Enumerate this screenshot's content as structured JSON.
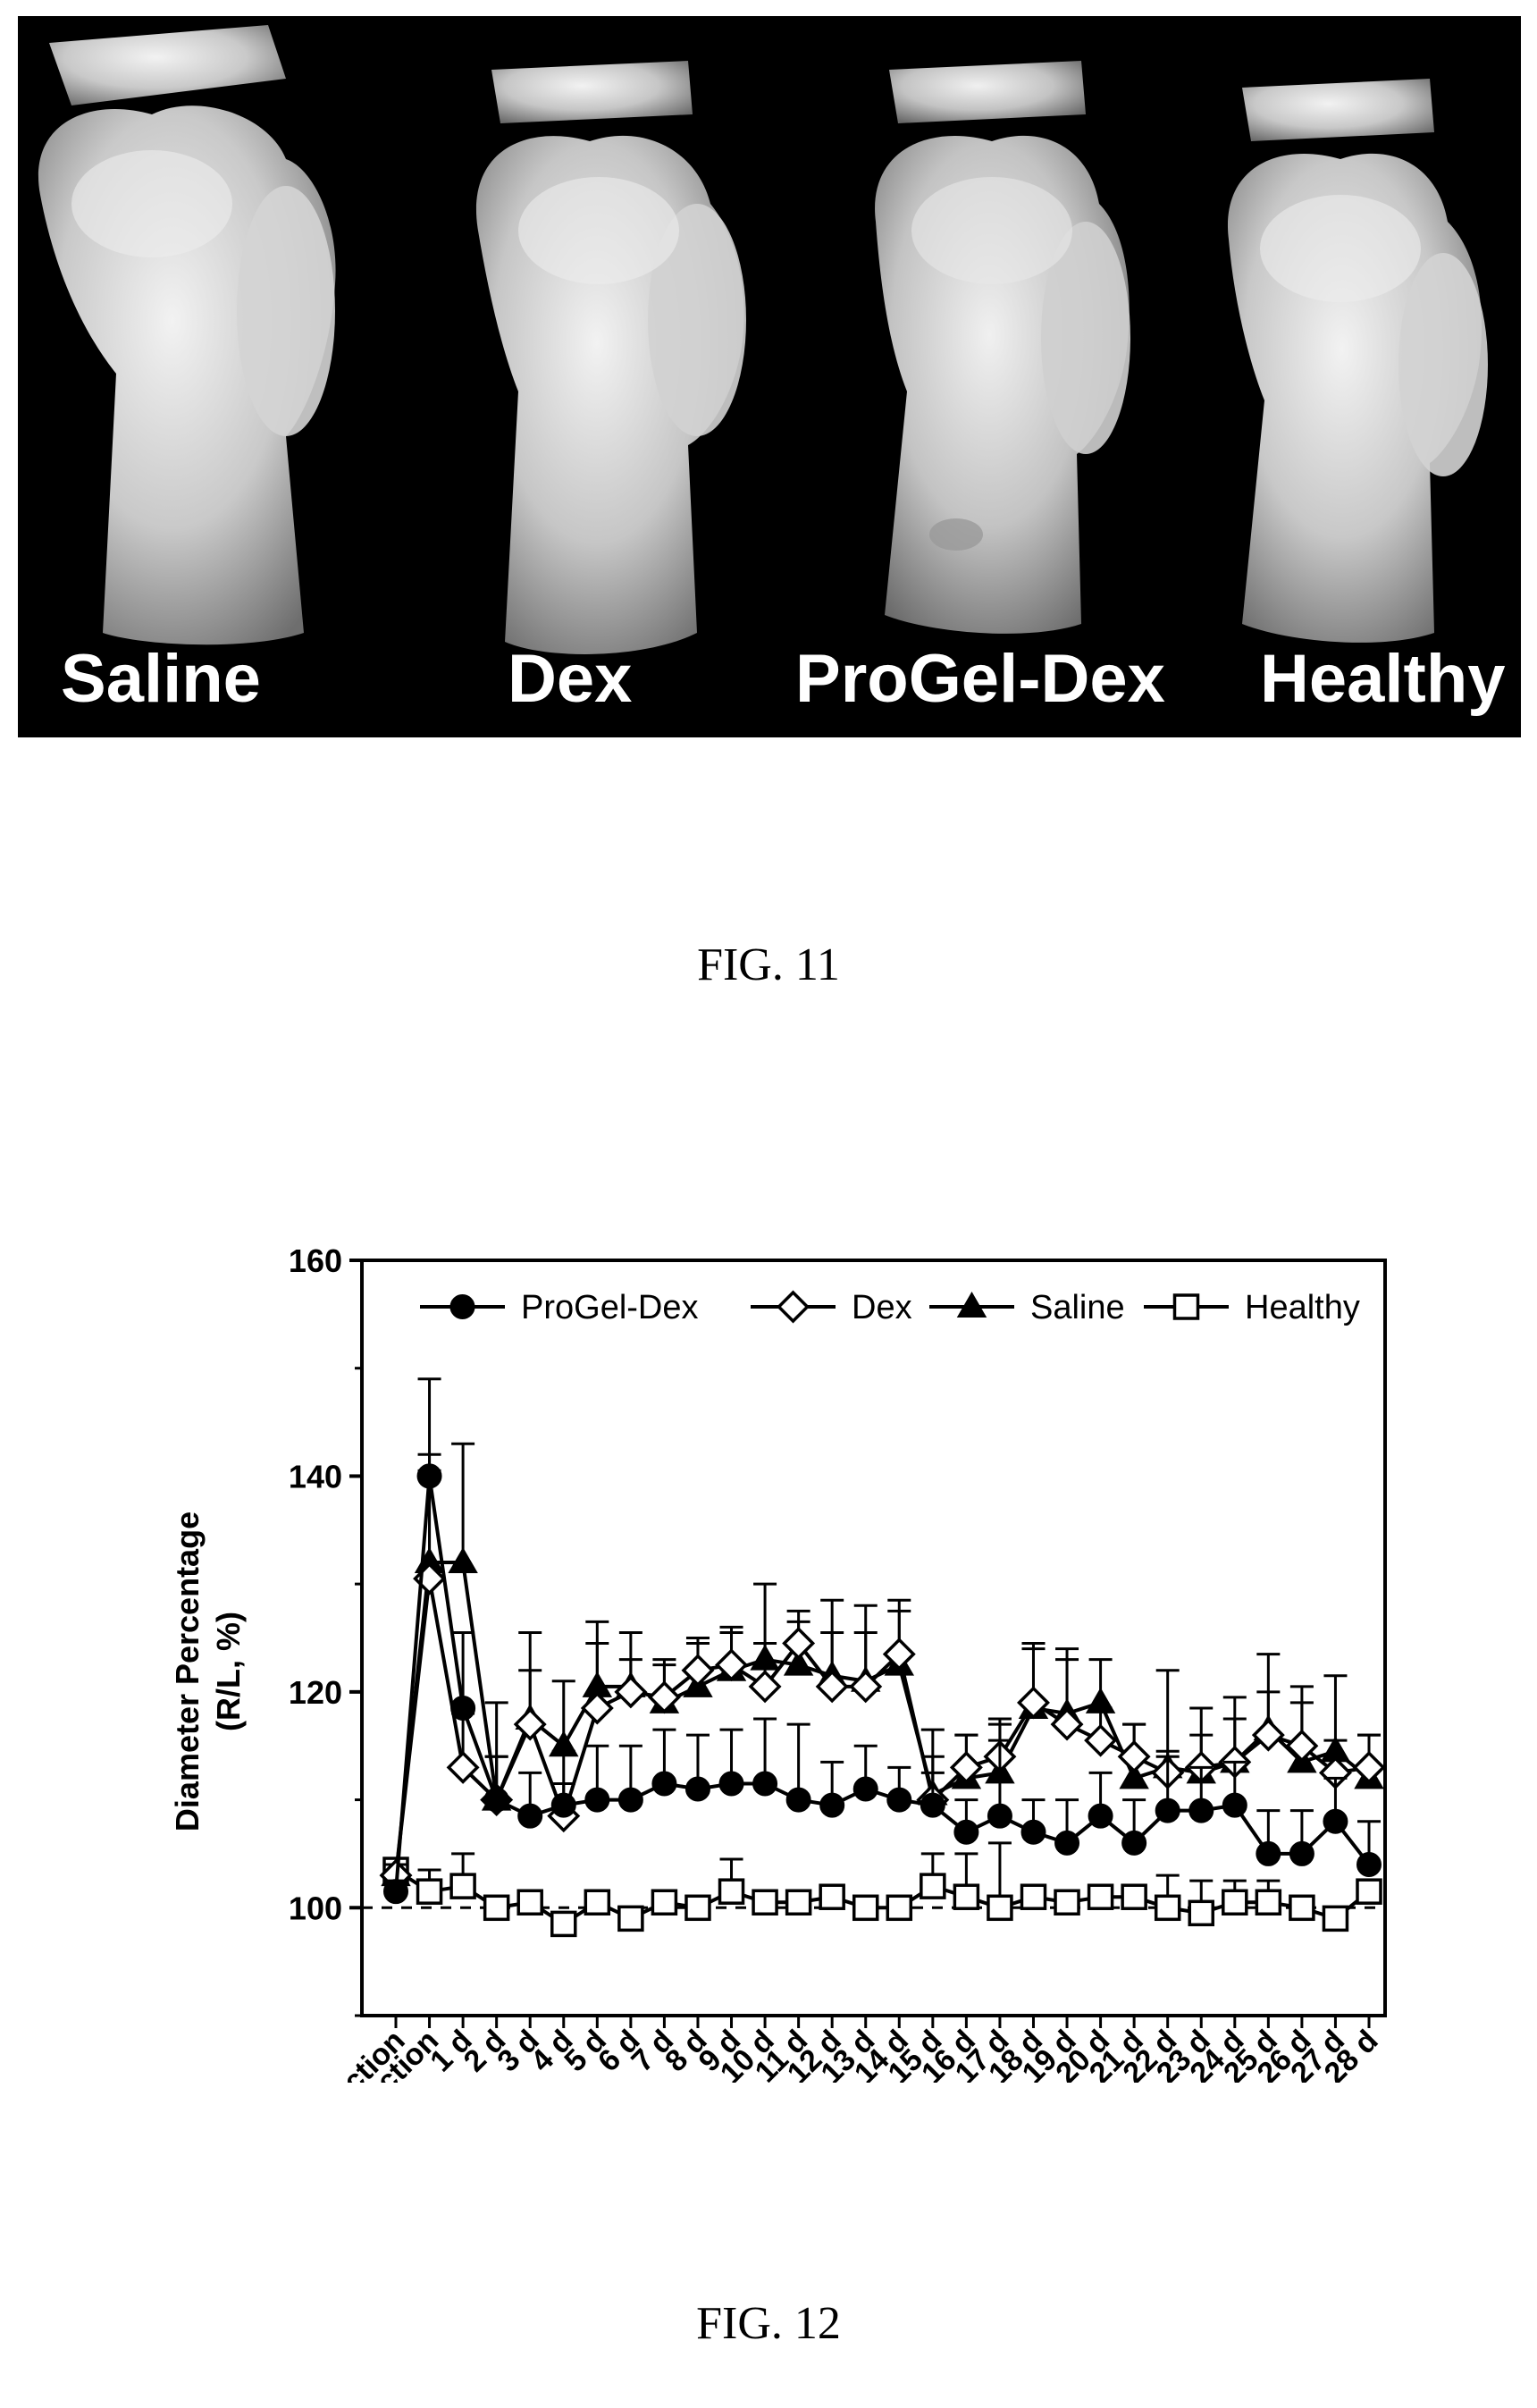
{
  "figure11": {
    "caption": "FIG. 11",
    "panels": [
      {
        "label": "Saline"
      },
      {
        "label": "Dex"
      },
      {
        "label": "ProGel-Dex"
      },
      {
        "label": "Healthy"
      }
    ]
  },
  "figure12": {
    "caption": "FIG. 12"
  },
  "chart_data": {
    "type": "line",
    "title": "",
    "ylabel_line1": "Diameter Percentage",
    "ylabel_line2": "(R/L, %)",
    "xlabel": "",
    "ylim": [
      90,
      160
    ],
    "yticks": [
      100,
      120,
      140,
      160
    ],
    "reference_line": 100,
    "grid": false,
    "legend_position": "top",
    "categories": [
      "pre-induction",
      "pre-injection",
      "1 d",
      "2 d",
      "3 d",
      "4 d",
      "5 d",
      "6 d",
      "7 d",
      "8 d",
      "9 d",
      "10 d",
      "11 d",
      "12 d",
      "13 d",
      "14 d",
      "15 d",
      "16 d",
      "17 d",
      "18 d",
      "19 d",
      "20 d",
      "21 d",
      "22 d",
      "23 d",
      "24 d",
      "25 d",
      "26 d",
      "27 d",
      "28 d"
    ],
    "series": [
      {
        "name": "ProGel-Dex",
        "marker": "filled-circle",
        "values": [
          101.5,
          140,
          118.5,
          110,
          108.5,
          109.5,
          110,
          110,
          111.5,
          111,
          111.5,
          111.5,
          110,
          109.5,
          111,
          110,
          109.5,
          107,
          108.5,
          107,
          106,
          108.5,
          106,
          109,
          109,
          109.5,
          105,
          105,
          108,
          104
        ],
        "errors": [
          1,
          9,
          7,
          4,
          4,
          5,
          5,
          5,
          5,
          5,
          5,
          6,
          7,
          4,
          4,
          3,
          3,
          3,
          7,
          3,
          4,
          4,
          4,
          5,
          4,
          4,
          4,
          4,
          4,
          4
        ]
      },
      {
        "name": "Dex",
        "marker": "open-diamond",
        "values": [
          103,
          130.5,
          113,
          110,
          117,
          108.5,
          118.5,
          120,
          119.5,
          122,
          122.5,
          120.5,
          124.5,
          120.5,
          120.5,
          123.5,
          110,
          113,
          114,
          119,
          117,
          115.5,
          114,
          112.5,
          113,
          113.5,
          116,
          115,
          112.5,
          113
        ],
        "errors": [
          1,
          10,
          5,
          4,
          5,
          3,
          6,
          3,
          3,
          3,
          3,
          4,
          3,
          5,
          5,
          4,
          4,
          3,
          3,
          5,
          6,
          3,
          3,
          2,
          3,
          4,
          4,
          4,
          3,
          3
        ]
      },
      {
        "name": "Saline",
        "marker": "filled-triangle",
        "values": [
          103,
          132,
          132,
          110,
          117.5,
          115,
          120.5,
          120.5,
          119,
          120.5,
          122,
          123,
          122.5,
          121.5,
          121,
          122.5,
          110.5,
          112,
          112.5,
          118.5,
          118,
          119,
          112,
          113,
          112.5,
          113.5,
          116.5,
          113.5,
          114.5,
          112
        ],
        "errors": [
          1,
          10,
          11,
          9,
          8,
          6,
          6,
          5,
          4,
          4,
          4,
          7,
          4,
          7,
          7,
          6,
          6,
          4,
          5,
          6,
          6,
          4,
          5,
          9,
          6,
          6,
          7,
          7,
          7,
          4
        ]
      },
      {
        "name": "Healthy",
        "marker": "open-square",
        "values": [
          103.5,
          101.5,
          102,
          100,
          100.5,
          98.5,
          100.5,
          99,
          100.5,
          100,
          101.5,
          100.5,
          100.5,
          101,
          100,
          100,
          102,
          101,
          100,
          101,
          100.5,
          101,
          101,
          100,
          99.5,
          100.5,
          100.5,
          100,
          99,
          101.5
        ],
        "errors": [
          1,
          2,
          3,
          1,
          1,
          1,
          1,
          1,
          1,
          1,
          3,
          1,
          1,
          1,
          1,
          1,
          3,
          4,
          6,
          1,
          1,
          1,
          1,
          3,
          3,
          2,
          2,
          1,
          1,
          1
        ]
      }
    ]
  }
}
